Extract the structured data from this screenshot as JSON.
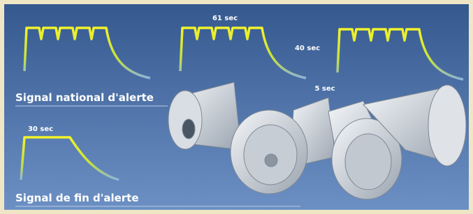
{
  "signals": {
    "national": {
      "label": "Signal national d'alerte",
      "durations": [
        "61 sec",
        "40 sec",
        "5 sec"
      ]
    },
    "end": {
      "label": "Signal de fin d'alerte",
      "duration": "30 sec"
    }
  }
}
